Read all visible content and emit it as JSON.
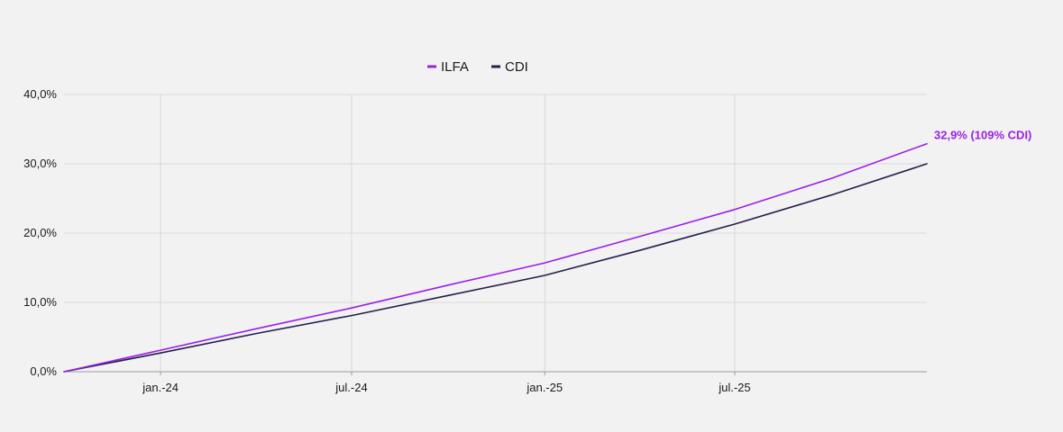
{
  "chart_data": {
    "type": "line",
    "x_tick_labels": [
      "jan.-24",
      "jul.-24",
      "jan.-25",
      "jul.-25"
    ],
    "y_tick_labels": [
      "0,0%",
      "10,0%",
      "20,0%",
      "30,0%",
      "40,0%"
    ],
    "ylim": [
      0,
      40
    ],
    "xlim": [
      "2023-10-01",
      "2025-12-31"
    ],
    "grid": true,
    "legend_placement": "top-center",
    "series": [
      {
        "name": "ILFA",
        "color": "#9b1fe8",
        "points": [
          {
            "x": "2023-10-01",
            "y": 0.0
          },
          {
            "x": "2024-01-01",
            "y": 3.1
          },
          {
            "x": "2024-04-01",
            "y": 6.2
          },
          {
            "x": "2024-07-01",
            "y": 9.2
          },
          {
            "x": "2024-10-01",
            "y": 12.5
          },
          {
            "x": "2025-01-01",
            "y": 15.7
          },
          {
            "x": "2025-04-01",
            "y": 19.5
          },
          {
            "x": "2025-07-01",
            "y": 23.4
          },
          {
            "x": "2025-10-01",
            "y": 27.9
          },
          {
            "x": "2025-12-31",
            "y": 32.9
          }
        ]
      },
      {
        "name": "CDI",
        "color": "#23204a",
        "points": [
          {
            "x": "2023-10-01",
            "y": 0.0
          },
          {
            "x": "2024-01-01",
            "y": 2.7
          },
          {
            "x": "2024-04-01",
            "y": 5.5
          },
          {
            "x": "2024-07-01",
            "y": 8.1
          },
          {
            "x": "2024-10-01",
            "y": 11.0
          },
          {
            "x": "2025-01-01",
            "y": 13.9
          },
          {
            "x": "2025-04-01",
            "y": 17.5
          },
          {
            "x": "2025-07-01",
            "y": 21.3
          },
          {
            "x": "2025-10-01",
            "y": 25.5
          },
          {
            "x": "2025-12-31",
            "y": 30.0
          }
        ]
      }
    ],
    "annotations": [
      {
        "text": "32,9% (109% CDI)",
        "series": "ILFA",
        "color": "#9b1fe8"
      }
    ]
  }
}
